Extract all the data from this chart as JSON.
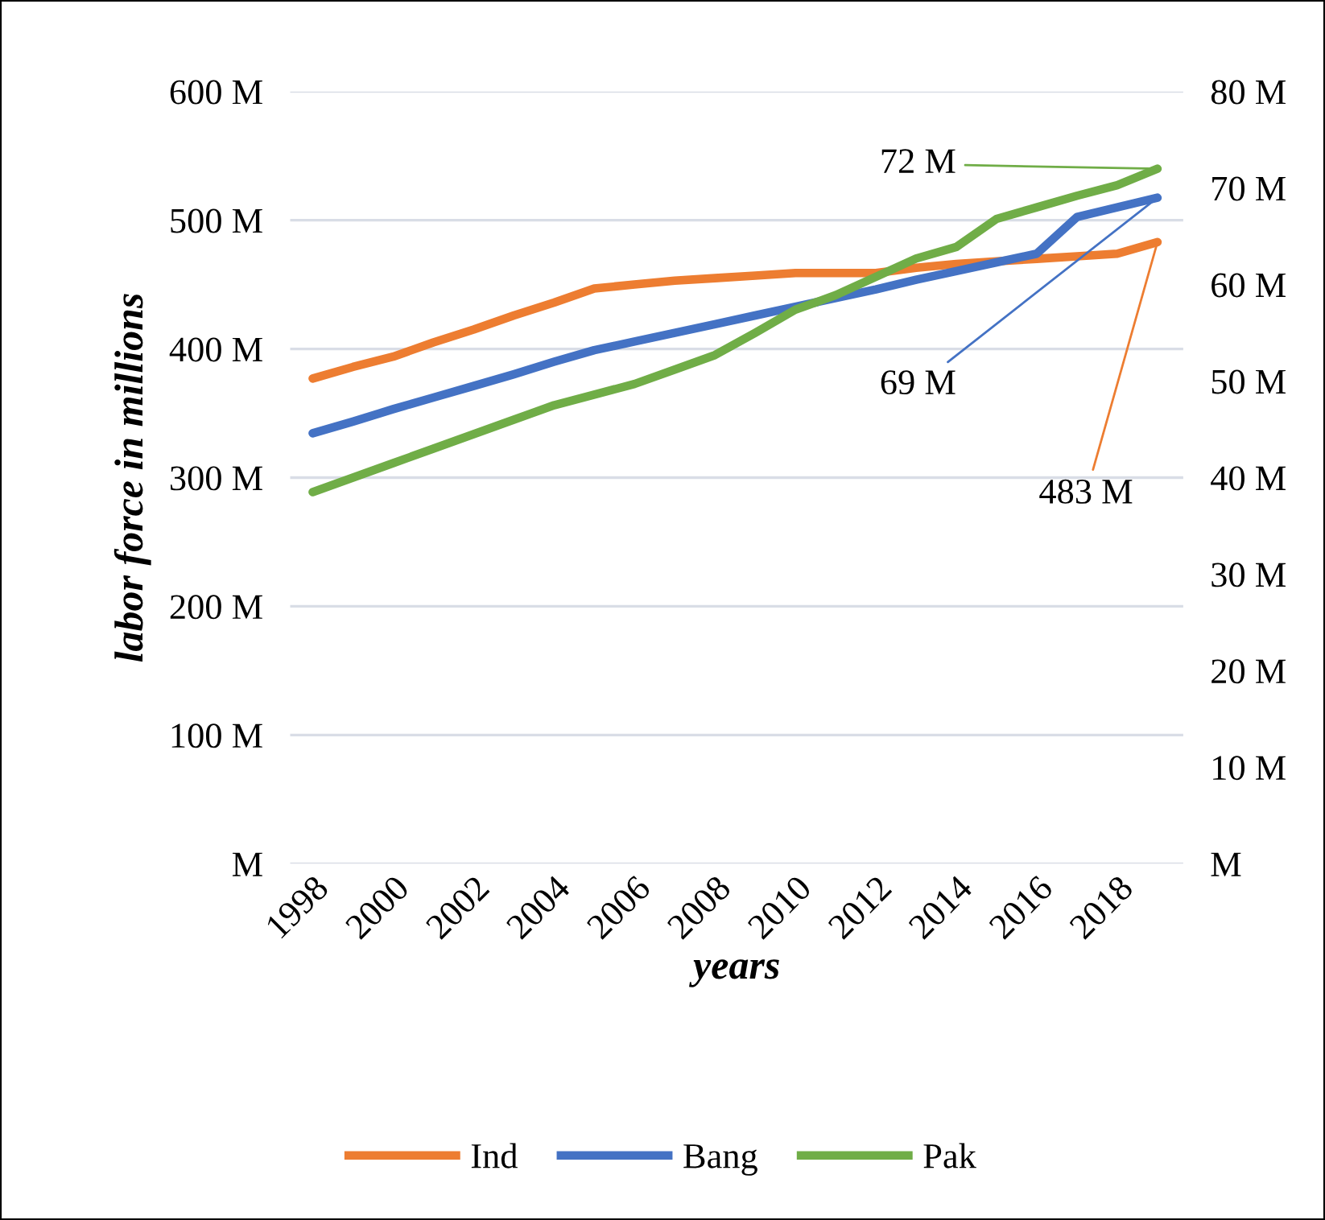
{
  "chart_data": {
    "type": "line",
    "xlabel": "years",
    "ylabel": "labor force in millions",
    "categories": [
      "1998",
      null,
      "2000",
      null,
      "2002",
      null,
      "2004",
      null,
      "2006",
      null,
      "2008",
      null,
      "2010",
      null,
      "2012",
      null,
      "2014",
      null,
      "2016",
      null,
      "2018",
      null
    ],
    "series": [
      {
        "name": "Ind",
        "color": "#ed7d31",
        "values": [
          377,
          386,
          394,
          405,
          415,
          426,
          436,
          447,
          450,
          453,
          455,
          457,
          459,
          459,
          459,
          463,
          466,
          468,
          470,
          472,
          474,
          483
        ],
        "value_labels": [
          null,
          null,
          null,
          null,
          null,
          null,
          null,
          null,
          null,
          null,
          null,
          null,
          null,
          null,
          null,
          null,
          null,
          null,
          null,
          null,
          null,
          "483 M"
        ]
      },
      {
        "name": "Bang",
        "color": "#4472c4",
        "axis": "y2",
        "values": [
          44.6,
          45.8,
          47.1,
          48.3,
          49.5,
          50.7,
          52.0,
          53.2,
          54.1,
          55.0,
          55.9,
          56.8,
          57.7,
          58.6,
          59.5,
          60.5,
          61.4,
          62.3,
          63.2,
          67.0,
          68.0,
          69
        ],
        "value_labels": [
          null,
          null,
          null,
          null,
          null,
          null,
          null,
          null,
          null,
          null,
          null,
          null,
          null,
          null,
          null,
          null,
          null,
          null,
          null,
          null,
          null,
          "69 M"
        ]
      },
      {
        "name": "Pak",
        "color": "#70ad47",
        "axis": "y2",
        "values": [
          38.5,
          40.0,
          41.5,
          43.0,
          44.5,
          46.0,
          47.5,
          48.6,
          49.7,
          51.2,
          52.7,
          55.0,
          57.4,
          58.9,
          60.8,
          62.7,
          63.9,
          66.8,
          68.0,
          69.2,
          70.3,
          72
        ],
        "value_labels": [
          null,
          null,
          null,
          null,
          null,
          null,
          null,
          null,
          null,
          null,
          null,
          null,
          null,
          null,
          null,
          null,
          null,
          null,
          null,
          null,
          null,
          "72 M"
        ]
      }
    ],
    "ylim": [
      0,
      600
    ],
    "yticks": [
      {
        "value": 0,
        "label": "M"
      },
      {
        "value": 100,
        "label": "100 M"
      },
      {
        "value": 200,
        "label": "200 M"
      },
      {
        "value": 300,
        "label": "300 M"
      },
      {
        "value": 400,
        "label": "400 M"
      },
      {
        "value": 500,
        "label": "500 M"
      },
      {
        "value": 600,
        "label": "600 M"
      }
    ],
    "y2lim": [
      0,
      80
    ],
    "y2ticks": [
      {
        "value": 0,
        "label": "M"
      },
      {
        "value": 10,
        "label": "10 M"
      },
      {
        "value": 20,
        "label": "20 M"
      },
      {
        "value": 30,
        "label": "30 M"
      },
      {
        "value": 40,
        "label": "40 M"
      },
      {
        "value": 50,
        "label": "50 M"
      },
      {
        "value": 60,
        "label": "60 M"
      },
      {
        "value": 70,
        "label": "70 M"
      },
      {
        "value": 80,
        "label": "80 M"
      }
    ],
    "grid": "y",
    "legend": "bottom",
    "marker": "none",
    "line_style": "solid"
  }
}
